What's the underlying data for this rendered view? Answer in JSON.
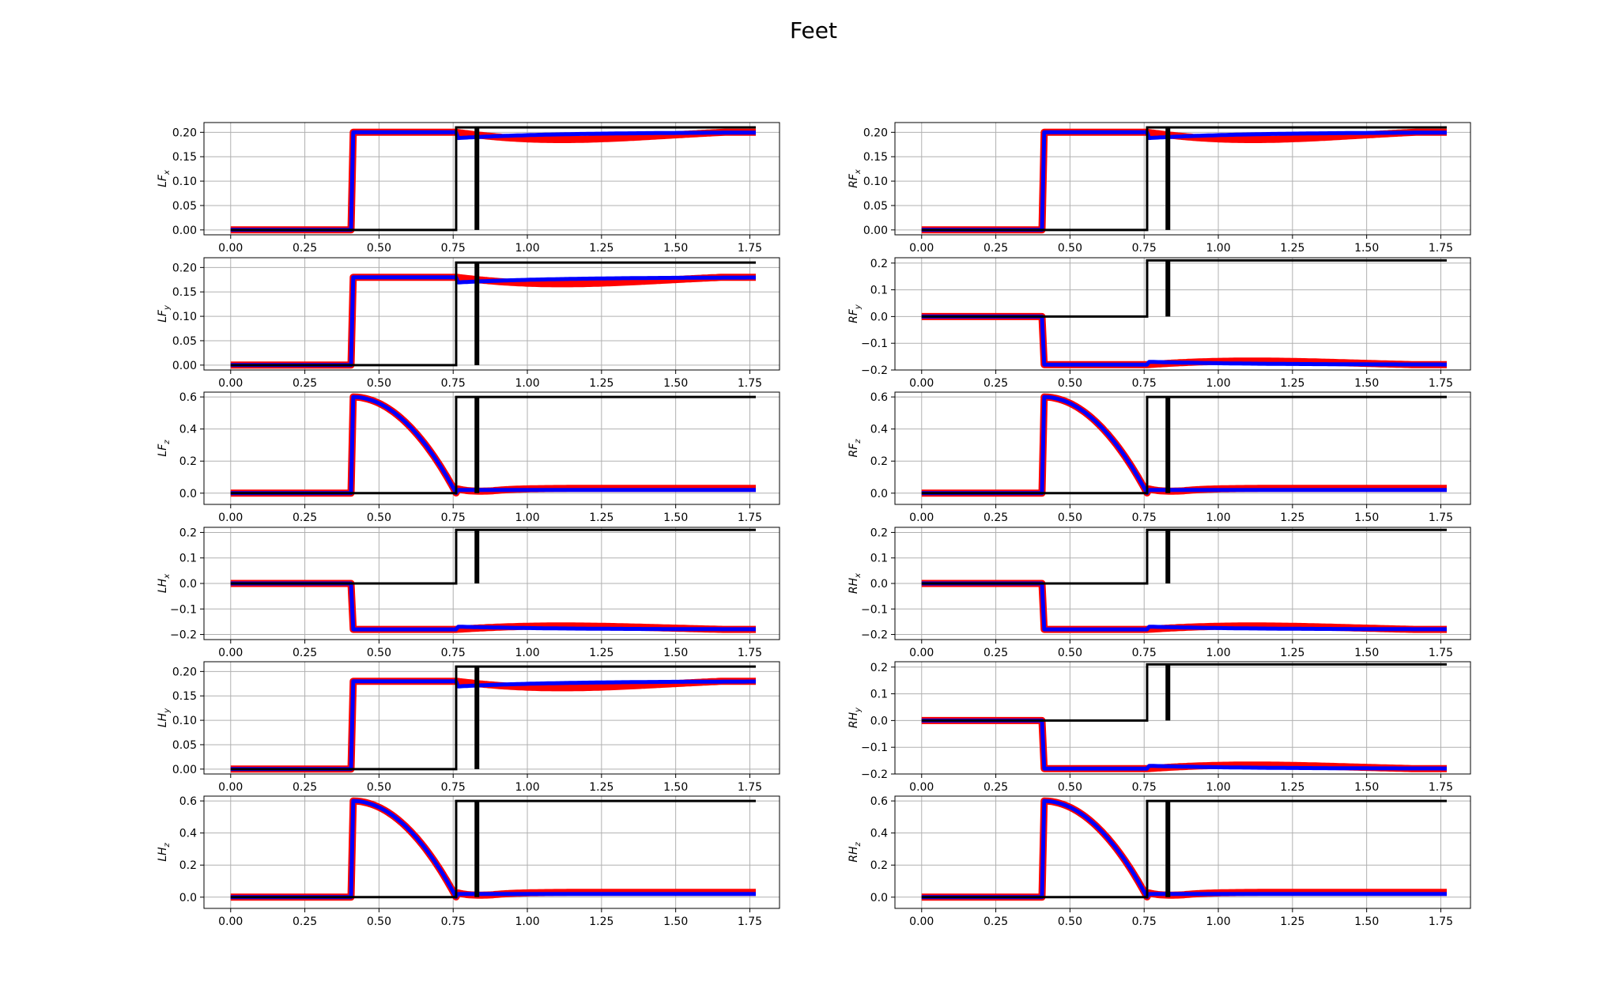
{
  "figure": {
    "title": "Feet"
  },
  "colors": {
    "black_series": "#000000",
    "red_series": "#ff0000",
    "blue_series": "#0000ff",
    "grid": "#b0b0b0"
  },
  "chart_data": [
    {
      "id": "LFx",
      "type": "line",
      "ylabel_main": "LF",
      "ylabel_sub": "x",
      "xlim": [
        -0.09,
        1.85
      ],
      "ylim": [
        -0.01,
        0.22
      ],
      "xticks": [
        "0.00",
        "0.25",
        "0.50",
        "0.75",
        "1.00",
        "1.25",
        "1.50",
        "1.75"
      ],
      "yticks": [
        "0.00",
        "0.05",
        "0.10",
        "0.15",
        "0.20"
      ],
      "grid": true,
      "profile": "step_pos",
      "final": 0.2
    },
    {
      "id": "RFx",
      "type": "line",
      "ylabel_main": "RF",
      "ylabel_sub": "x",
      "xlim": [
        -0.09,
        1.85
      ],
      "ylim": [
        -0.01,
        0.22
      ],
      "xticks": [
        "0.00",
        "0.25",
        "0.50",
        "0.75",
        "1.00",
        "1.25",
        "1.50",
        "1.75"
      ],
      "yticks": [
        "0.00",
        "0.05",
        "0.10",
        "0.15",
        "0.20"
      ],
      "grid": true,
      "profile": "step_pos",
      "final": 0.2
    },
    {
      "id": "LFy",
      "type": "line",
      "ylabel_main": "LF",
      "ylabel_sub": "y",
      "xlim": [
        -0.09,
        1.85
      ],
      "ylim": [
        -0.01,
        0.22
      ],
      "xticks": [
        "0.00",
        "0.25",
        "0.50",
        "0.75",
        "1.00",
        "1.25",
        "1.50",
        "1.75"
      ],
      "yticks": [
        "0.00",
        "0.05",
        "0.10",
        "0.15",
        "0.20"
      ],
      "grid": true,
      "profile": "step_pos",
      "final": 0.18
    },
    {
      "id": "RFy",
      "type": "line",
      "ylabel_main": "RF",
      "ylabel_sub": "y",
      "xlim": [
        -0.09,
        1.85
      ],
      "ylim": [
        -0.2,
        0.22
      ],
      "xticks": [
        "0.00",
        "0.25",
        "0.50",
        "0.75",
        "1.00",
        "1.25",
        "1.50",
        "1.75"
      ],
      "yticks": [
        "−0.2",
        "−0.1",
        "0.0",
        "0.1",
        "0.2"
      ],
      "grid": true,
      "profile": "step_neg",
      "final": -0.18
    },
    {
      "id": "LFz",
      "type": "line",
      "ylabel_main": "LF",
      "ylabel_sub": "z",
      "xlim": [
        -0.09,
        1.85
      ],
      "ylim": [
        -0.07,
        0.63
      ],
      "xticks": [
        "0.00",
        "0.25",
        "0.50",
        "0.75",
        "1.00",
        "1.25",
        "1.50",
        "1.75"
      ],
      "yticks": [
        "0.0",
        "0.2",
        "0.4",
        "0.6"
      ],
      "grid": true,
      "profile": "arc",
      "final": 0.6
    },
    {
      "id": "RFz",
      "type": "line",
      "ylabel_main": "RF",
      "ylabel_sub": "z",
      "xlim": [
        -0.09,
        1.85
      ],
      "ylim": [
        -0.07,
        0.63
      ],
      "xticks": [
        "0.00",
        "0.25",
        "0.50",
        "0.75",
        "1.00",
        "1.25",
        "1.50",
        "1.75"
      ],
      "yticks": [
        "0.0",
        "0.2",
        "0.4",
        "0.6"
      ],
      "grid": true,
      "profile": "arc",
      "final": 0.6
    },
    {
      "id": "LHx",
      "type": "line",
      "ylabel_main": "LH",
      "ylabel_sub": "x",
      "xlim": [
        -0.09,
        1.85
      ],
      "ylim": [
        -0.22,
        0.22
      ],
      "xticks": [
        "0.00",
        "0.25",
        "0.50",
        "0.75",
        "1.00",
        "1.25",
        "1.50",
        "1.75"
      ],
      "yticks": [
        "−0.2",
        "−0.1",
        "0.0",
        "0.1",
        "0.2"
      ],
      "grid": true,
      "profile": "step_neg",
      "final": -0.18
    },
    {
      "id": "RHx",
      "type": "line",
      "ylabel_main": "RH",
      "ylabel_sub": "x",
      "xlim": [
        -0.09,
        1.85
      ],
      "ylim": [
        -0.22,
        0.22
      ],
      "xticks": [
        "0.00",
        "0.25",
        "0.50",
        "0.75",
        "1.00",
        "1.25",
        "1.50",
        "1.75"
      ],
      "yticks": [
        "−0.2",
        "−0.1",
        "0.0",
        "0.1",
        "0.2"
      ],
      "grid": true,
      "profile": "step_neg",
      "final": -0.18
    },
    {
      "id": "LHy",
      "type": "line",
      "ylabel_main": "LH",
      "ylabel_sub": "y",
      "xlim": [
        -0.09,
        1.85
      ],
      "ylim": [
        -0.01,
        0.22
      ],
      "xticks": [
        "0.00",
        "0.25",
        "0.50",
        "0.75",
        "1.00",
        "1.25",
        "1.50",
        "1.75"
      ],
      "yticks": [
        "0.00",
        "0.05",
        "0.10",
        "0.15",
        "0.20"
      ],
      "grid": true,
      "profile": "step_pos",
      "final": 0.18
    },
    {
      "id": "RHy",
      "type": "line",
      "ylabel_main": "RH",
      "ylabel_sub": "y",
      "xlim": [
        -0.09,
        1.85
      ],
      "ylim": [
        -0.2,
        0.22
      ],
      "xticks": [
        "0.00",
        "0.25",
        "0.50",
        "0.75",
        "1.00",
        "1.25",
        "1.50",
        "1.75"
      ],
      "yticks": [
        "−0.2",
        "−0.1",
        "0.0",
        "0.1",
        "0.2"
      ],
      "grid": true,
      "profile": "step_neg",
      "final": -0.18
    },
    {
      "id": "LHz",
      "type": "line",
      "ylabel_main": "LH",
      "ylabel_sub": "z",
      "xlim": [
        -0.09,
        1.85
      ],
      "ylim": [
        -0.07,
        0.63
      ],
      "xticks": [
        "0.00",
        "0.25",
        "0.50",
        "0.75",
        "1.00",
        "1.25",
        "1.50",
        "1.75"
      ],
      "yticks": [
        "0.0",
        "0.2",
        "0.4",
        "0.6"
      ],
      "grid": true,
      "profile": "arc",
      "final": 0.6
    },
    {
      "id": "RHz",
      "type": "line",
      "ylabel_main": "RH",
      "ylabel_sub": "z",
      "xlim": [
        -0.09,
        1.85
      ],
      "ylim": [
        -0.07,
        0.63
      ],
      "xticks": [
        "0.00",
        "0.25",
        "0.50",
        "0.75",
        "1.00",
        "1.25",
        "1.50",
        "1.75"
      ],
      "yticks": [
        "0.0",
        "0.2",
        "0.4",
        "0.6"
      ],
      "grid": true,
      "profile": "arc",
      "final": 0.6
    }
  ]
}
